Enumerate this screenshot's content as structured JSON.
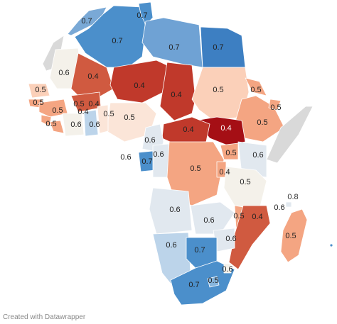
{
  "colors": {
    "0.4": "#c0392b",
    "0.4-dark": "#a50f15",
    "0.4-mid": "#d05a40",
    "0.5": "#f4a582",
    "0.5-light": "#fbd0b9",
    "0.6": "#e1e8ef",
    "0.6-warm": "#f4f1ea",
    "0.7": "#4b8fcb",
    "0.7-light": "#86b5dd",
    "nodata": "#d9d9d9"
  },
  "labels": [
    "0.7",
    "0.7",
    "0.7",
    "0.7",
    "0.6",
    "0.4",
    "0.4",
    "0.4",
    "0.5",
    "0.5",
    "0.5",
    "0.5",
    "0.4",
    "0.5",
    "0.5",
    "0.5",
    "0.6",
    "0.6",
    "0.5",
    "0.4",
    "0.4",
    "0.5",
    "0.5",
    "0.6",
    "0.6",
    "0.7",
    "0.6",
    "0.5",
    "0.4",
    "0.6",
    "0.5",
    "0.6",
    "0.5",
    "0.4",
    "0.6",
    "0.6",
    "0.5",
    "0.6",
    "0.6",
    "0.7",
    "0.6",
    "0.7",
    "0.5",
    "0.6",
    "0.8"
  ],
  "footer": {
    "credit": "Created with Datawrapper"
  }
}
